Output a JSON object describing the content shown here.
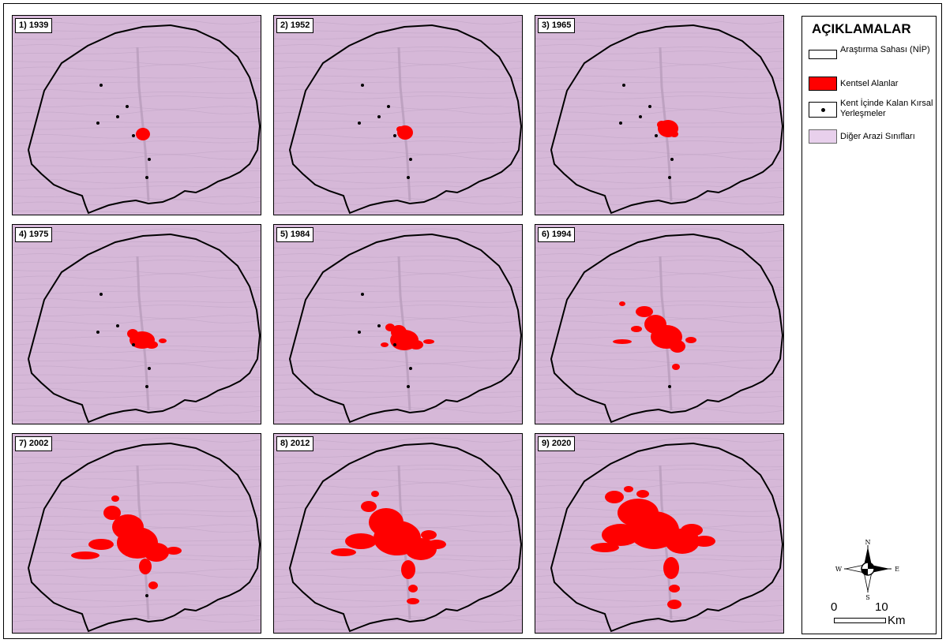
{
  "panels": [
    {
      "label": "1) 1939"
    },
    {
      "label": "2) 1952"
    },
    {
      "label": "3) 1965"
    },
    {
      "label": "4) 1975"
    },
    {
      "label": "5) 1984"
    },
    {
      "label": "6) 1994"
    },
    {
      "label": "7) 2002"
    },
    {
      "label": "8) 2012"
    },
    {
      "label": "9) 2020"
    }
  ],
  "legend": {
    "title": "AÇIKLAMALAR",
    "items": [
      {
        "label": "Araştırma Sahası (NİP)",
        "symbol": "outline"
      },
      {
        "label": "Kentsel Alanlar",
        "symbol": "red-fill",
        "color": "#ff0000"
      },
      {
        "label": "Kent İçinde Kalan Kırsal Yerleşmeler",
        "symbol": "dot"
      },
      {
        "label": "Diğer Arazi Sınıfları",
        "symbol": "lilac-fill",
        "color": "#e8d0ec"
      }
    ]
  },
  "north_arrow": {
    "n": "N",
    "s": "S",
    "e": "E",
    "w": "W"
  },
  "scale_bar": {
    "start": "0",
    "end": "10",
    "unit": "Km"
  },
  "colors": {
    "urban": "#ff0000",
    "background": "#d6b8d8",
    "boundary": "#000000"
  }
}
